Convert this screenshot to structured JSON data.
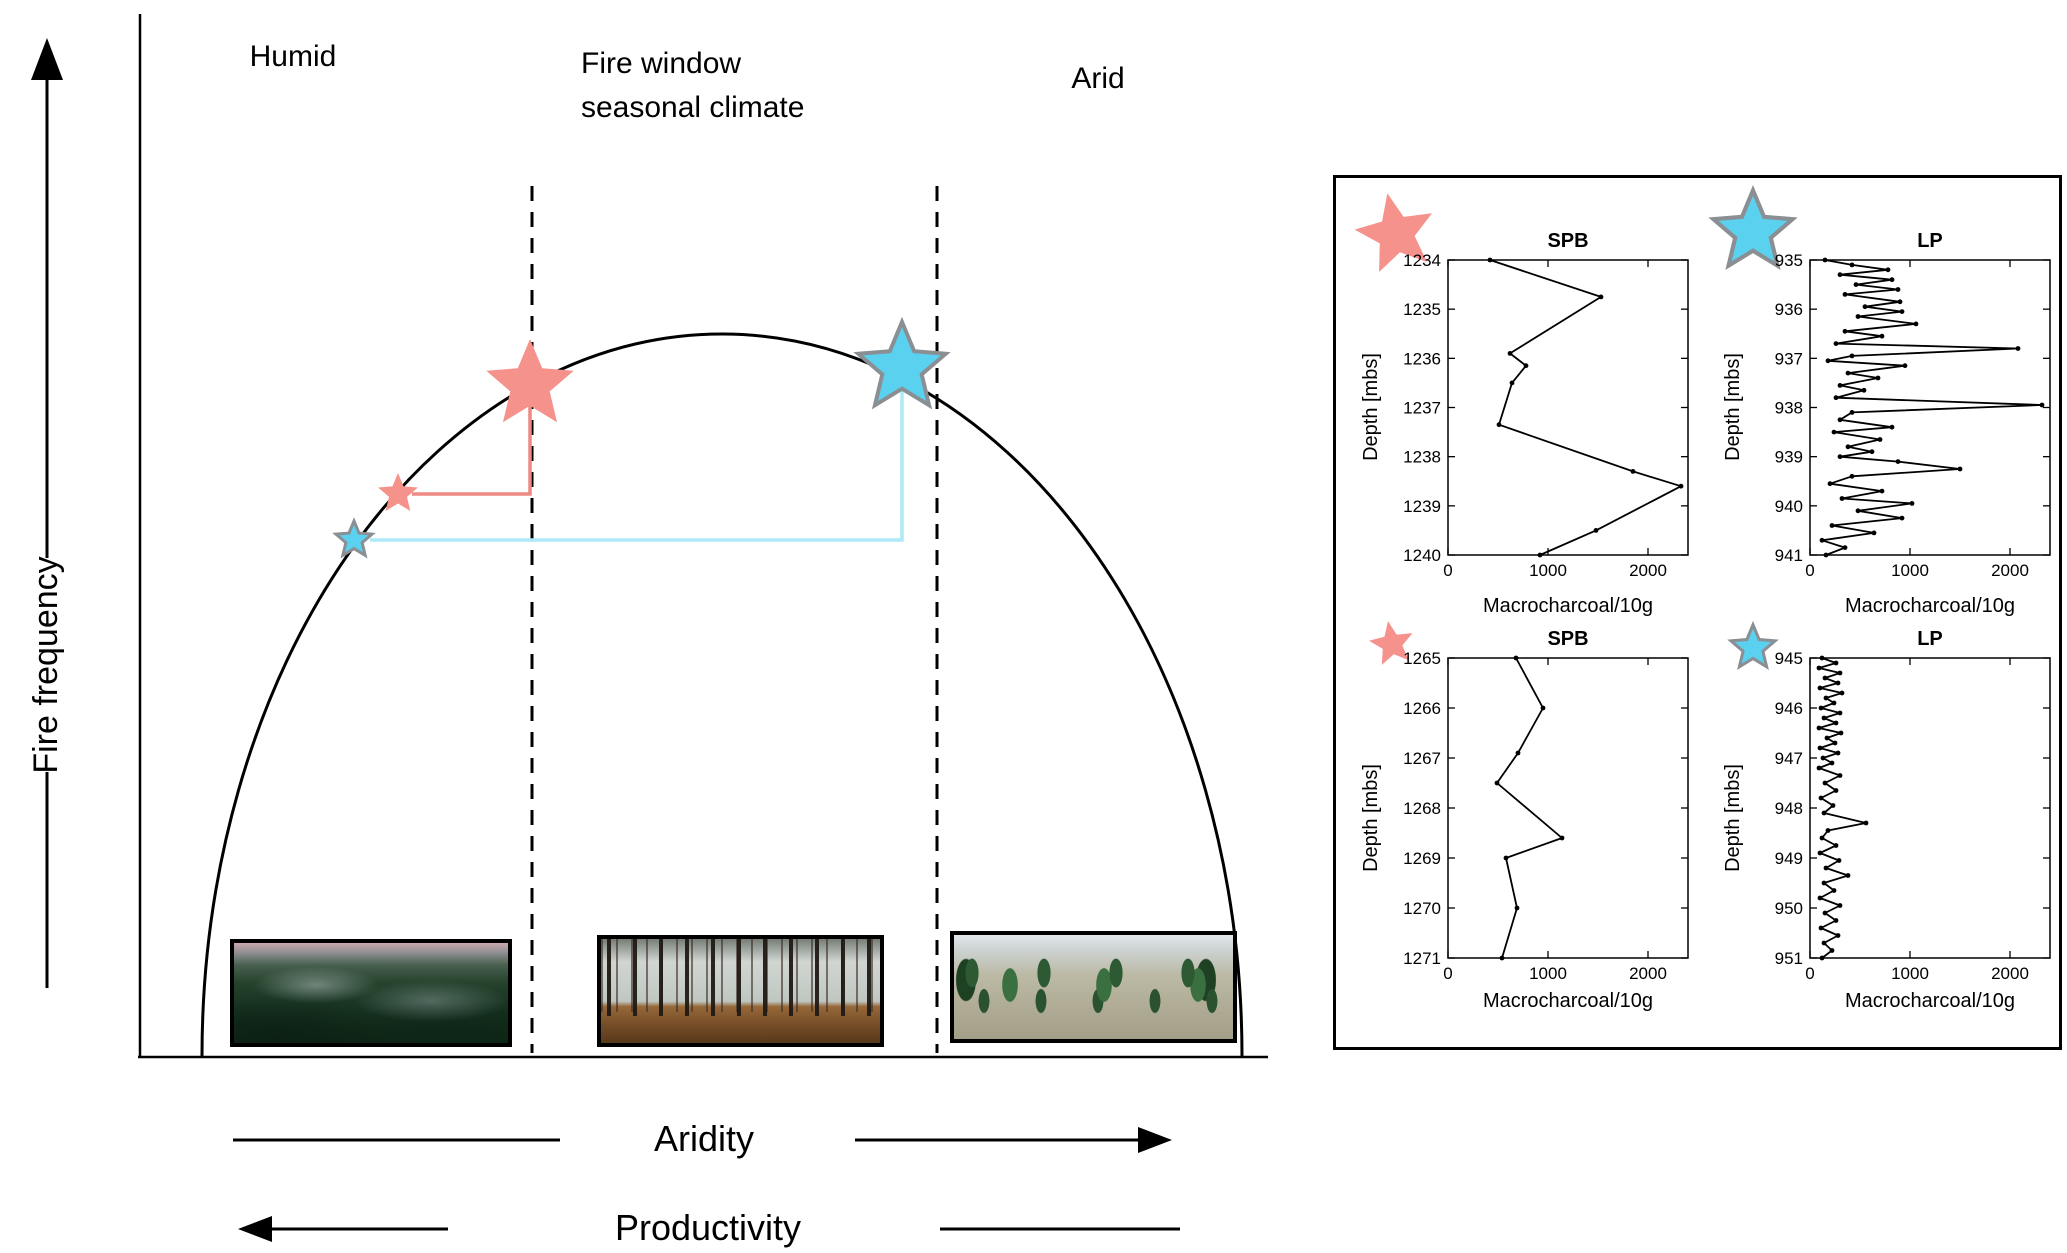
{
  "labels": {
    "humid": "Humid",
    "fire_window_line1": "Fire window",
    "fire_window_line2": "seasonal climate",
    "arid": "Arid",
    "y_axis": "Fire frequency",
    "x_axis_aridity": "Aridity",
    "x_axis_productivity": "Productivity"
  },
  "colors": {
    "pink": "#F5928C",
    "pink_connector": "#EE8983",
    "blue": "#5BD1F0",
    "blue_connector": "#AEE9F7",
    "star_outline": "#8A8F94",
    "line": "#000000"
  },
  "chart_data": [
    {
      "type": "line",
      "title": "SPB",
      "xlabel": "Macrocharcoal/10g",
      "ylabel": "Depth [mbs]",
      "legend_marker": "large-pink-star",
      "xlim": [
        0,
        2400
      ],
      "xticks": [
        0,
        1000,
        2000
      ],
      "ylim": [
        1234,
        1240
      ],
      "yticks": [
        1234,
        1235,
        1236,
        1237,
        1238,
        1239,
        1240
      ],
      "depths": [
        1234.0,
        1234.75,
        1235.9,
        1236.15,
        1236.5,
        1237.35,
        1238.3,
        1238.6,
        1239.5,
        1240.0
      ],
      "values": [
        420,
        1530,
        620,
        780,
        640,
        510,
        1850,
        2330,
        1480,
        920
      ]
    },
    {
      "type": "line",
      "title": "LP",
      "xlabel": "Macrocharcoal/10g",
      "ylabel": "Depth [mbs]",
      "legend_marker": "large-blue-star",
      "xlim": [
        0,
        2400
      ],
      "xticks": [
        0,
        1000,
        2000
      ],
      "ylim": [
        935,
        941
      ],
      "yticks": [
        935,
        936,
        937,
        938,
        939,
        940,
        941
      ],
      "depths": [
        935.0,
        935.1,
        935.2,
        935.3,
        935.4,
        935.5,
        935.6,
        935.7,
        935.85,
        935.95,
        936.05,
        936.15,
        936.3,
        936.45,
        936.55,
        936.7,
        936.8,
        936.95,
        937.05,
        937.15,
        937.3,
        937.4,
        937.55,
        937.65,
        937.8,
        937.95,
        938.1,
        938.25,
        938.4,
        938.5,
        938.65,
        938.8,
        938.9,
        939.0,
        939.1,
        939.25,
        939.4,
        939.55,
        939.7,
        939.85,
        939.95,
        940.1,
        940.25,
        940.4,
        940.55,
        940.7,
        940.85,
        941.0
      ],
      "values": [
        150,
        420,
        780,
        300,
        820,
        460,
        880,
        350,
        900,
        550,
        920,
        480,
        1060,
        350,
        720,
        260,
        2080,
        420,
        180,
        950,
        380,
        680,
        300,
        540,
        260,
        2320,
        420,
        300,
        820,
        240,
        700,
        380,
        620,
        300,
        880,
        1500,
        420,
        200,
        720,
        320,
        1020,
        480,
        920,
        220,
        640,
        120,
        350,
        160
      ]
    },
    {
      "type": "line",
      "title": "SPB",
      "xlabel": "Macrocharcoal/10g",
      "ylabel": "Depth [mbs]",
      "legend_marker": "small-pink-star",
      "xlim": [
        0,
        2400
      ],
      "xticks": [
        0,
        1000,
        2000
      ],
      "ylim": [
        1265,
        1271
      ],
      "yticks": [
        1265,
        1266,
        1267,
        1268,
        1269,
        1270,
        1271
      ],
      "depths": [
        1265.0,
        1266.0,
        1266.9,
        1267.5,
        1268.6,
        1269.0,
        1270.0,
        1271.0
      ],
      "values": [
        680,
        950,
        700,
        490,
        1140,
        580,
        690,
        540
      ]
    },
    {
      "type": "line",
      "title": "LP",
      "xlabel": "Macrocharcoal/10g",
      "ylabel": "Depth [mbs]",
      "legend_marker": "small-blue-star",
      "xlim": [
        0,
        2400
      ],
      "xticks": [
        0,
        1000,
        2000
      ],
      "ylim": [
        945,
        951
      ],
      "yticks": [
        945,
        946,
        947,
        948,
        949,
        950,
        951
      ],
      "depths": [
        945.0,
        945.1,
        945.2,
        945.3,
        945.4,
        945.5,
        945.6,
        945.7,
        945.8,
        945.9,
        946.0,
        946.1,
        946.2,
        946.3,
        946.4,
        946.5,
        946.6,
        946.7,
        946.8,
        946.9,
        947.0,
        947.1,
        947.2,
        947.35,
        947.5,
        947.65,
        947.8,
        947.95,
        948.1,
        948.3,
        948.45,
        948.6,
        948.75,
        948.9,
        949.05,
        949.2,
        949.35,
        949.5,
        949.65,
        949.8,
        949.95,
        950.1,
        950.25,
        950.4,
        950.55,
        950.7,
        950.85,
        951.0
      ],
      "values": [
        120,
        260,
        90,
        300,
        150,
        280,
        100,
        320,
        160,
        240,
        110,
        300,
        140,
        260,
        90,
        310,
        170,
        250,
        100,
        280,
        130,
        220,
        90,
        300,
        150,
        260,
        110,
        230,
        140,
        560,
        180,
        120,
        260,
        100,
        290,
        160,
        380,
        140,
        240,
        100,
        300,
        150,
        260,
        110,
        280,
        140,
        220,
        120
      ]
    }
  ]
}
